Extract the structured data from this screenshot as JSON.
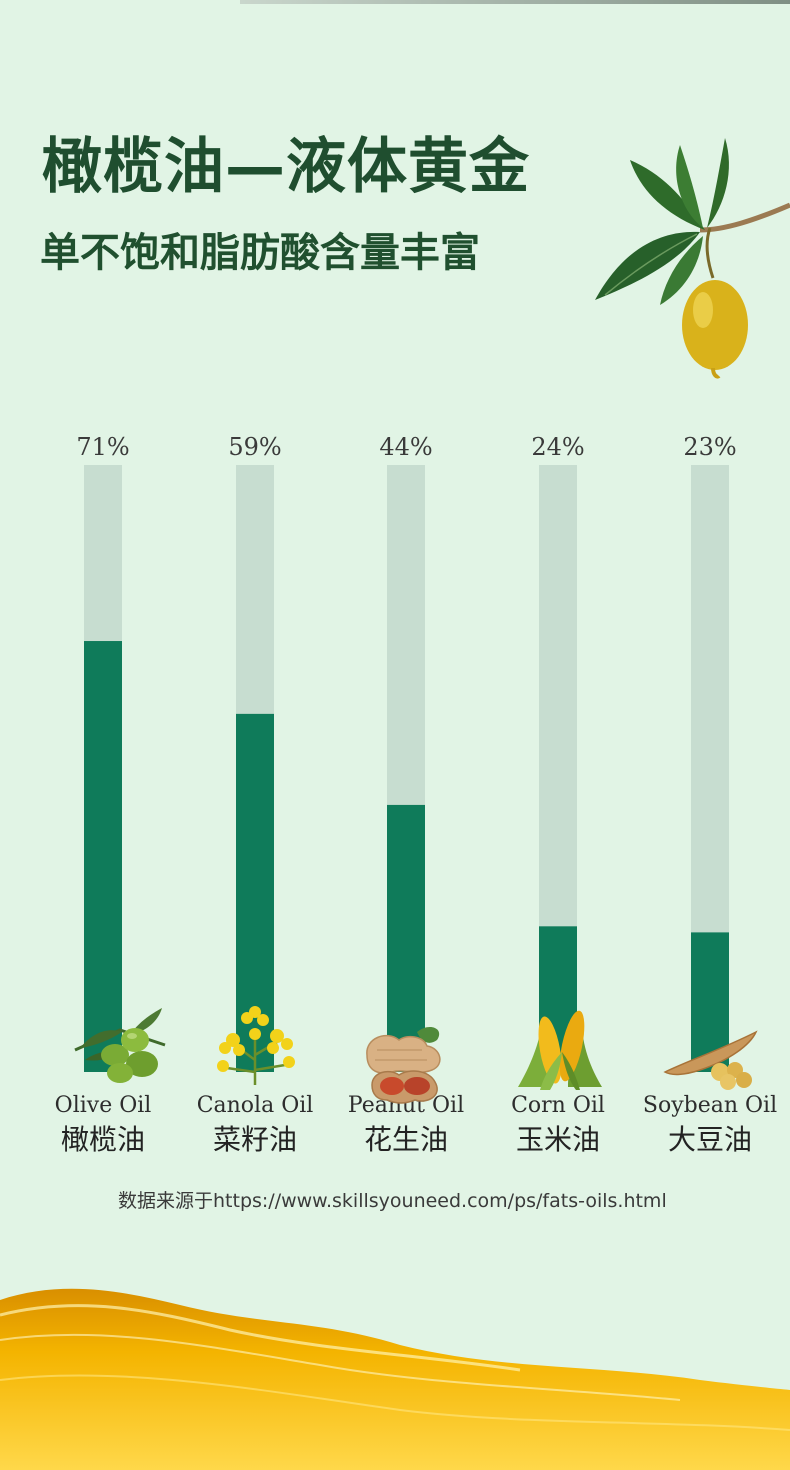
{
  "header": {
    "title": "橄榄油—液体黄金",
    "subtitle": "单不饱和脂肪酸含量丰富"
  },
  "source": "数据来源于https://www.skillsyouneed.com/ps/fats-oils.html",
  "colors": {
    "background": "#e1f4e5",
    "bar_fill": "#0f7b5a",
    "bar_track": "#c7ddd0",
    "title": "#1f4e2f",
    "oil_gold": "#f2b600"
  },
  "chart_data": {
    "type": "bar",
    "categories": [
      "Olive Oil",
      "Canola Oil",
      "Peanut Oil",
      "Corn Oil",
      "Soybean Oil"
    ],
    "categories_cn": [
      "橄榄油",
      "菜籽油",
      "花生油",
      "玉米油",
      "大豆油"
    ],
    "value_labels": [
      "71%",
      "59%",
      "44%",
      "24%",
      "23%"
    ],
    "values": [
      71,
      59,
      44,
      24,
      23
    ],
    "ylim": [
      0,
      100
    ],
    "grid": false,
    "title": "",
    "xlabel": "",
    "ylabel": "",
    "icons": [
      "olives-icon",
      "canola-flower-icon",
      "peanut-icon",
      "corn-icon",
      "soybean-icon"
    ]
  }
}
